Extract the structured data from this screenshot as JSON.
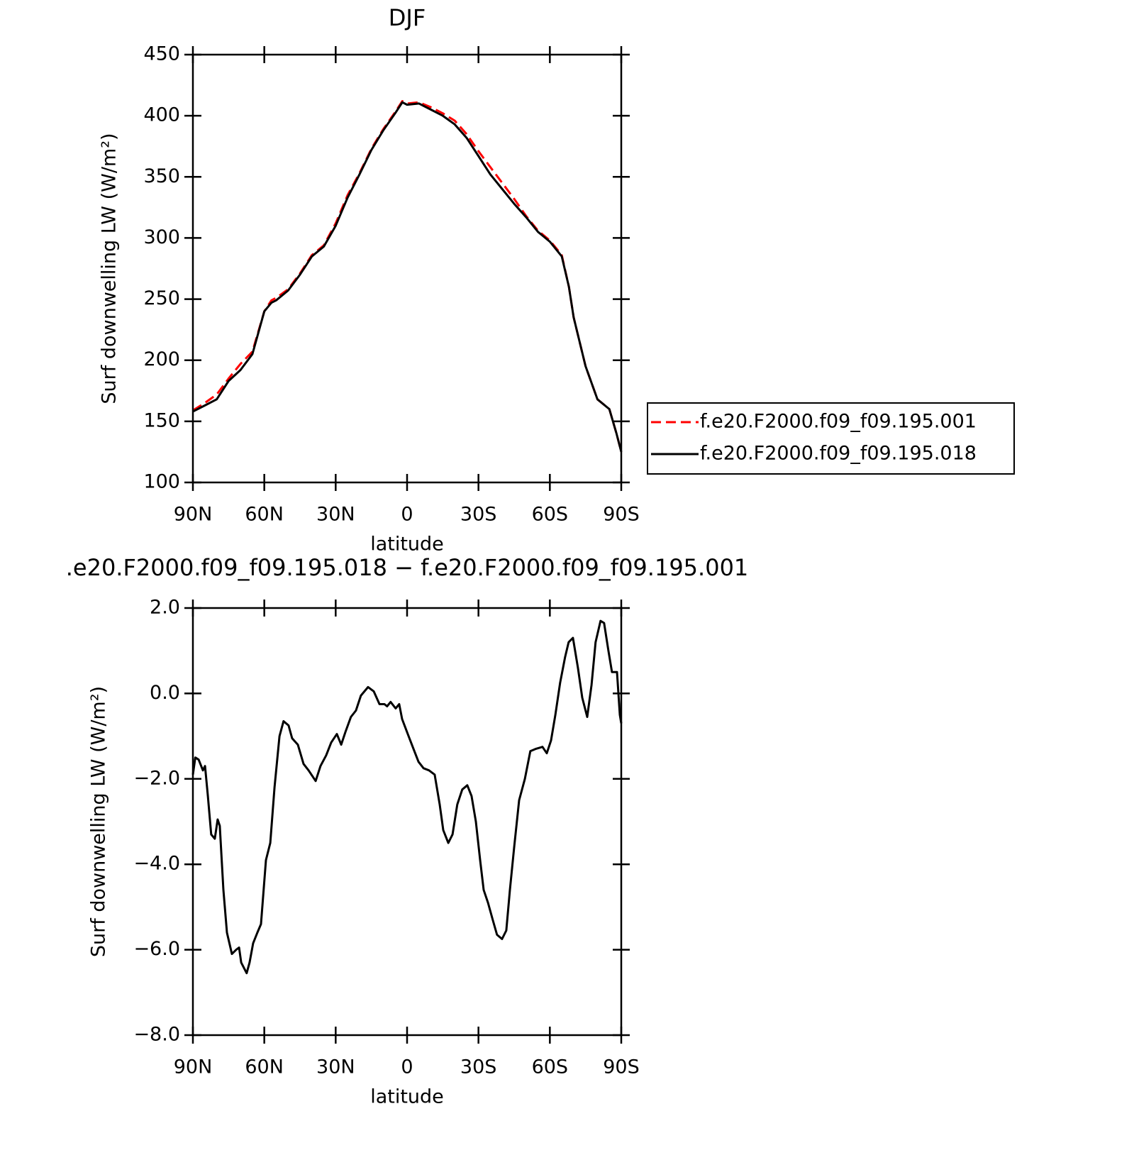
{
  "chart_data": [
    {
      "type": "line",
      "title": "DJF",
      "xlabel": "latitude",
      "ylabel": "Surf downwelling LW (W/m²)",
      "x": [
        90,
        85,
        80,
        75,
        70,
        65,
        60,
        57,
        55,
        50,
        45,
        40,
        35,
        30,
        25,
        20,
        15,
        10,
        5,
        2,
        0,
        -5,
        -10,
        -15,
        -20,
        -25,
        -30,
        -35,
        -40,
        -45,
        -50,
        -55,
        -60,
        -65,
        -68,
        -70,
        -75,
        -80,
        -85,
        -88,
        -90
      ],
      "series": [
        {
          "name": "f.e20.F2000.f09_f09.195.001",
          "color": "#ff0000",
          "line_style": "dashed",
          "values": [
            159,
            165,
            172,
            185,
            197,
            207,
            240,
            249,
            251,
            258,
            271,
            286,
            294,
            312,
            335,
            353,
            373,
            389,
            403,
            412,
            410,
            411,
            407,
            402,
            396,
            385,
            371,
            358,
            345,
            332,
            318,
            306,
            298,
            286,
            260,
            235,
            195,
            168,
            160,
            140,
            125
          ]
        },
        {
          "name": "f.e20.F2000.f09_f09.195.018",
          "color": "#000000",
          "line_style": "solid",
          "values": [
            158,
            163,
            168,
            183,
            192,
            205,
            240,
            247,
            249,
            257,
            270,
            285,
            293,
            310,
            333,
            352,
            372,
            388,
            402,
            411,
            409,
            410,
            405,
            400,
            393,
            382,
            367,
            352,
            340,
            328,
            317,
            305,
            297,
            285,
            260,
            235,
            195,
            168,
            160,
            140,
            125
          ]
        }
      ],
      "xlim": [
        90,
        -90
      ],
      "xticks": [
        {
          "value": 90,
          "label": "90N"
        },
        {
          "value": 60,
          "label": "60N"
        },
        {
          "value": 30,
          "label": "30N"
        },
        0,
        {
          "value": -30,
          "label": "30S"
        },
        {
          "value": -60,
          "label": "60S"
        },
        {
          "value": -90,
          "label": "90S"
        }
      ],
      "ylim": [
        100,
        450
      ],
      "yticks": [
        100,
        150,
        200,
        250,
        300,
        350,
        400,
        450
      ],
      "legend": "right"
    },
    {
      "type": "line",
      "title": ".e20.F2000.f09_f09.195.018 − f.e20.F2000.f09_f09.195.001",
      "xlabel": "latitude",
      "ylabel": "Surf downwelling LW (W/m²)",
      "x": [
        90,
        89,
        87.6,
        85.8,
        84.9,
        83.7,
        82.3,
        80.8,
        79.6,
        78.7,
        77.2,
        75.7,
        73.6,
        71.8,
        70.6,
        69.7,
        67.4,
        66.2,
        64.7,
        62.9,
        61.4,
        59.3,
        57.5,
        55.7,
        53.6,
        51.9,
        49.8,
        48.3,
        45.9,
        43.5,
        41.4,
        38.4,
        36.4,
        34,
        31.9,
        29.5,
        27.7,
        25.9,
        23.6,
        21.5,
        19.4,
        16.4,
        14,
        11.6,
        9.5,
        8.4,
        6.9,
        4.8,
        3.3,
        2.1,
        -0.3,
        -2.7,
        -4.8,
        -6.9,
        -9.2,
        -11.6,
        -13.7,
        -15.2,
        -17.3,
        -19.1,
        -21.1,
        -23.2,
        -25.3,
        -27.1,
        -28.9,
        -30.7,
        -32.2,
        -34,
        -36,
        -37.8,
        -39.9,
        -41.7,
        -43.2,
        -45,
        -47.1,
        -49.5,
        -51.8,
        -53.9,
        -56.9,
        -58.7,
        -60.5,
        -62.3,
        -64.3,
        -66.4,
        -67.9,
        -69.7,
        -71.8,
        -73.6,
        -75.7,
        -77.5,
        -79.2,
        -81.3,
        -82.8,
        -84.6,
        -86.1,
        -88.2,
        -89.4,
        -90
      ],
      "values": [
        -1.9,
        -1.5,
        -1.55,
        -1.8,
        -1.7,
        -2.4,
        -3.3,
        -3.4,
        -2.95,
        -3.1,
        -4.6,
        -5.6,
        -6.1,
        -6.0,
        -5.95,
        -6.3,
        -6.55,
        -6.3,
        -5.85,
        -5.6,
        -5.4,
        -3.9,
        -3.5,
        -2.2,
        -1.0,
        -0.65,
        -0.75,
        -1.05,
        -1.2,
        -1.65,
        -1.8,
        -2.05,
        -1.7,
        -1.45,
        -1.15,
        -0.95,
        -1.2,
        -0.9,
        -0.55,
        -0.4,
        -0.05,
        0.15,
        0.05,
        -0.25,
        -0.25,
        -0.3,
        -0.2,
        -0.35,
        -0.25,
        -0.6,
        -0.95,
        -1.3,
        -1.6,
        -1.75,
        -1.8,
        -1.9,
        -2.6,
        -3.2,
        -3.5,
        -3.3,
        -2.6,
        -2.25,
        -2.15,
        -2.4,
        -3.0,
        -3.9,
        -4.6,
        -4.9,
        -5.3,
        -5.65,
        -5.75,
        -5.55,
        -4.6,
        -3.6,
        -2.5,
        -2.0,
        -1.35,
        -1.3,
        -1.25,
        -1.4,
        -1.1,
        -0.5,
        0.25,
        0.85,
        1.2,
        1.3,
        0.6,
        -0.1,
        -0.55,
        0.2,
        1.2,
        1.7,
        1.65,
        1.0,
        0.5,
        0.5,
        -0.5,
        -0.7
      ],
      "color": "#000000",
      "xlim": [
        90,
        -90
      ],
      "xticks": [
        {
          "value": 90,
          "label": "90N"
        },
        {
          "value": 60,
          "label": "60N"
        },
        {
          "value": 30,
          "label": "30N"
        },
        0,
        {
          "value": -30,
          "label": "30S"
        },
        {
          "value": -60,
          "label": "60S"
        },
        {
          "value": -90,
          "label": "90S"
        }
      ],
      "ylim": [
        -8,
        2
      ],
      "yticks": [
        {
          "value": -8,
          "label": "−8.0"
        },
        {
          "value": -6,
          "label": "−6.0"
        },
        {
          "value": -4,
          "label": "−4.0"
        },
        {
          "value": -2,
          "label": "−2.0"
        },
        {
          "value": 0,
          "label": "0.0"
        },
        {
          "value": 2,
          "label": "2.0"
        }
      ]
    }
  ]
}
